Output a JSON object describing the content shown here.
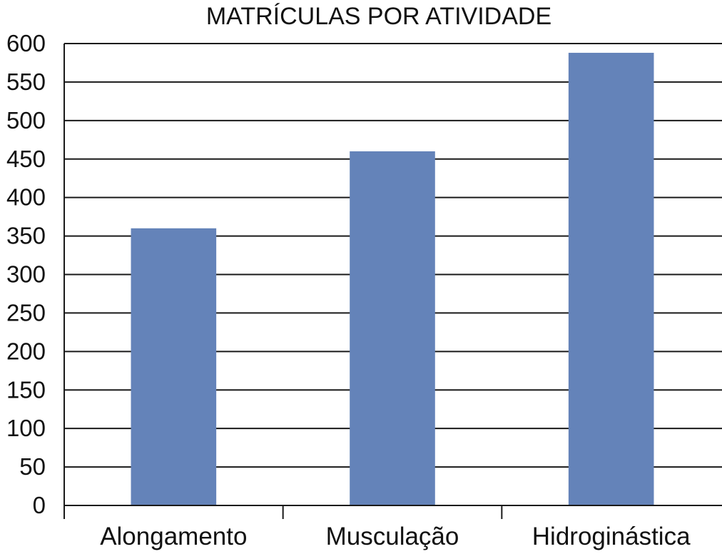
{
  "chart_data": {
    "type": "bar",
    "title": "MATRÍCULAS POR ATIVIDADE",
    "xlabel": "",
    "ylabel": "",
    "categories": [
      "Alongamento",
      "Musculação",
      "Hidroginástica"
    ],
    "series": [
      {
        "values": [
          360,
          460,
          588
        ]
      }
    ],
    "ylim": [
      0,
      600
    ],
    "yticks": [
      "0",
      "50",
      "100",
      "150",
      "200",
      "250",
      "300",
      "350",
      "400",
      "450",
      "500",
      "550",
      "600"
    ],
    "grid": true,
    "legend": "none",
    "colors": {
      "bar": "#6483b9"
    }
  }
}
